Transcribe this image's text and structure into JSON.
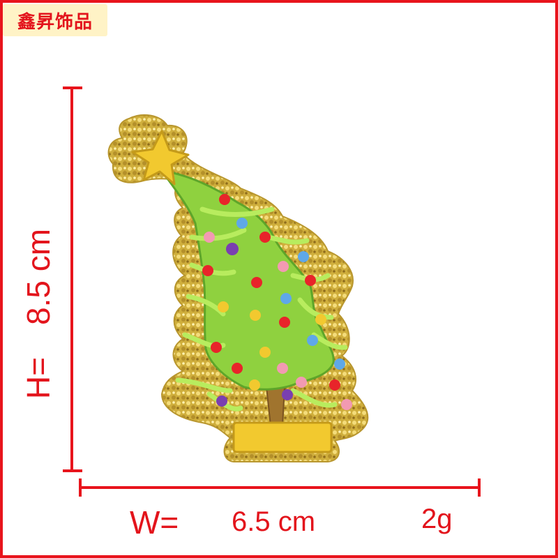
{
  "brand": {
    "name": "鑫昇饰品"
  },
  "height": {
    "prefix": "H=",
    "value": "8.5 cm"
  },
  "width": {
    "prefix": "W=",
    "value": "6.5 cm"
  },
  "weight": {
    "value": "2g"
  },
  "colors": {
    "accent": "#e3141c",
    "brand_bg": "#fff3c6",
    "sequin_gold": "#d7b743",
    "tree_green": "#8fd13f"
  }
}
